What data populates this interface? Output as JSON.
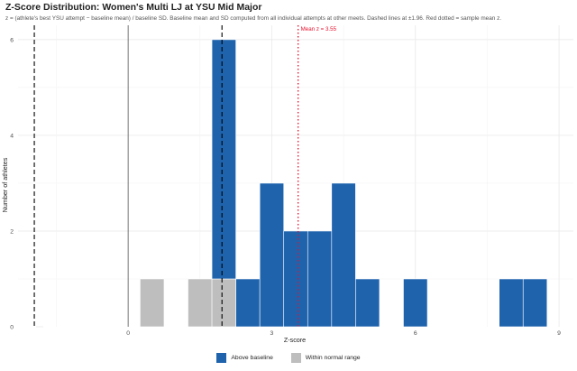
{
  "chart_data": {
    "type": "bar",
    "title": "Z-Score Distribution: Women's Multi LJ at YSU Mid Major",
    "subtitle": "z = (athlete's best YSU attempt − baseline mean) / baseline SD. Baseline mean and SD computed from all individual attempts at other meets. Dashed lines at ±1.96. Red dotted = sample mean z.",
    "xlabel": "Z-score",
    "ylabel": "Number of athletes",
    "xlim": [
      -2.3,
      9.3
    ],
    "ylim": [
      0,
      6.3
    ],
    "x_ticks": [
      0,
      3,
      6,
      9
    ],
    "y_ticks": [
      0,
      2,
      4,
      6
    ],
    "x_tick_labels": [
      "0",
      "3",
      "6",
      "9"
    ],
    "y_tick_labels": [
      "0",
      "2",
      "4",
      "6"
    ],
    "bin_width": 0.5,
    "stacked": true,
    "series": [
      {
        "name": "Above baseline",
        "color": "#1f63ad",
        "bins": [
          {
            "x0": 1.75,
            "x1": 2.25,
            "count": 5
          },
          {
            "x0": 2.25,
            "x1": 2.75,
            "count": 1
          },
          {
            "x0": 2.75,
            "x1": 3.25,
            "count": 3
          },
          {
            "x0": 3.25,
            "x1": 3.75,
            "count": 2
          },
          {
            "x0": 3.75,
            "x1": 4.25,
            "count": 2
          },
          {
            "x0": 4.25,
            "x1": 4.75,
            "count": 3
          },
          {
            "x0": 4.75,
            "x1": 5.25,
            "count": 1
          },
          {
            "x0": 5.75,
            "x1": 6.25,
            "count": 1
          },
          {
            "x0": 7.75,
            "x1": 8.25,
            "count": 1
          },
          {
            "x0": 8.25,
            "x1": 8.75,
            "count": 1
          }
        ]
      },
      {
        "name": "Within normal range",
        "color": "#bebebe",
        "bins": [
          {
            "x0": 0.25,
            "x1": 0.75,
            "count": 1
          },
          {
            "x0": 1.25,
            "x1": 1.75,
            "count": 1
          },
          {
            "x0": 1.75,
            "x1": 2.25,
            "count": 1
          }
        ]
      }
    ],
    "reference_lines": [
      {
        "x": -1.96,
        "style": "dashed",
        "color": "#000000"
      },
      {
        "x": 1.96,
        "style": "dashed",
        "color": "#000000"
      },
      {
        "x": 0,
        "style": "solid",
        "color": "#555555"
      },
      {
        "x": 3.55,
        "style": "dotted",
        "color": "#e8112d",
        "label": "Mean z = 3.55"
      }
    ],
    "grid": true,
    "legend_position": "bottom"
  },
  "legend": {
    "above": "Above baseline",
    "within": "Within normal range"
  }
}
